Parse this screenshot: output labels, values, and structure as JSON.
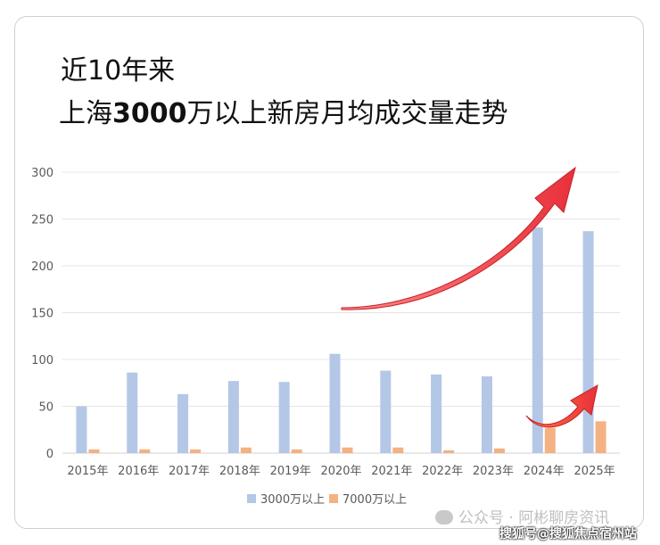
{
  "title_line1": "近10年来",
  "title_line2_pre": "上海",
  "title_line2_bold": "3000",
  "title_line2_post": "万以上新房月均成交量走势",
  "watermark": "公众号 · 阿彬聊房资讯",
  "source": "搜狐号@搜狐焦点宿州站",
  "colors": {
    "series1": "#b4c7e7",
    "series2": "#f4b183",
    "grid": "#e4e4e4",
    "arrow": "#e8303a"
  },
  "chart_data": {
    "type": "bar",
    "categories": [
      "2015年",
      "2016年",
      "2017年",
      "2018年",
      "2019年",
      "2020年",
      "2021年",
      "2022年",
      "2023年",
      "2024年",
      "2025年"
    ],
    "series": [
      {
        "name": "3000万以上",
        "values": [
          50,
          86,
          63,
          77,
          76,
          106,
          88,
          84,
          82,
          241,
          237
        ]
      },
      {
        "name": "7000万以上",
        "values": [
          4,
          4,
          4,
          6,
          4,
          6,
          6,
          3,
          5,
          27,
          34
        ]
      }
    ],
    "yticks": [
      "0",
      "50",
      "100",
      "150",
      "200",
      "250",
      "300"
    ],
    "ylim": [
      0,
      300
    ],
    "grid": true,
    "legend": "bottom",
    "annotations": [
      "upward-arrow-3000",
      "upward-arrow-7000"
    ]
  }
}
